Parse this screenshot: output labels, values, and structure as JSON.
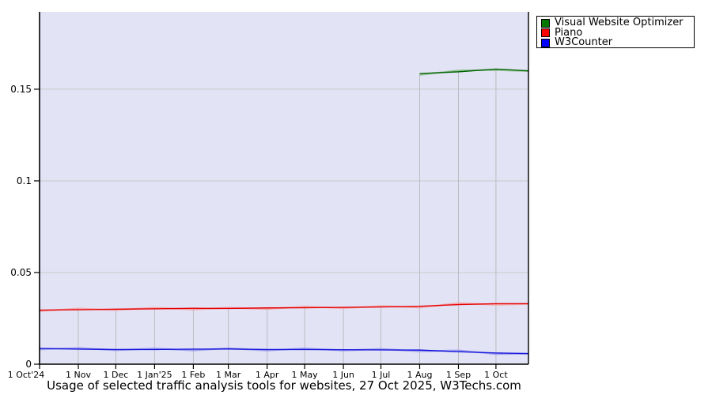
{
  "page": {
    "background": "#ffffff"
  },
  "chart_data": {
    "type": "line",
    "title": "Usage of selected traffic analysis tools for websites, 27 Oct 2025, W3Techs.com",
    "xlabel": "",
    "ylabel": "",
    "x_ticks": [
      "1 Oct'24",
      "1 Nov",
      "1 Dec",
      "1 Jan'25",
      "1 Feb",
      "1 Mar",
      "1 Apr",
      "1 May",
      "1 Jun",
      "1 Jul",
      "1 Aug",
      "1 Sep",
      "1 Oct"
    ],
    "x_end": "27 Oct 2025",
    "y_ticks": [
      "0",
      "0.05",
      "0.1",
      "0.15"
    ],
    "y_tick_values": [
      0,
      0.05,
      0.1,
      0.15
    ],
    "ylim": [
      0,
      0.1922
    ],
    "grid": "on",
    "legend_position": "top-right",
    "plot_background": "#e3e3f6",
    "hgrid_color": "#c8c8c8",
    "vgrid_color": "#bcbcc0",
    "axis_color": "#000000",
    "series": [
      {
        "name": "Visual Website Optimizer",
        "color": "#006400",
        "halo_color": "#8cbc8c",
        "swatch_color": "#007800",
        "values": [
          null,
          null,
          null,
          null,
          null,
          null,
          null,
          null,
          null,
          null,
          0.1585,
          0.1595,
          0.161
        ],
        "end_value": 0.16
      },
      {
        "name": "Piano",
        "color": "#e60000",
        "halo_color": "#f2a0a0",
        "swatch_color": "#ff0000",
        "values": [
          0.0295,
          0.0297,
          0.03,
          0.0302,
          0.0305,
          0.0304,
          0.0307,
          0.0308,
          0.031,
          0.0312,
          0.0316,
          0.0325,
          0.033
        ],
        "end_value": 0.033
      },
      {
        "name": "W3Counter",
        "color": "#1414dc",
        "halo_color": "#9898ec",
        "swatch_color": "#0000ff",
        "values": [
          0.0086,
          0.0082,
          0.008,
          0.008,
          0.0082,
          0.0083,
          0.008,
          0.008,
          0.0079,
          0.0078,
          0.0077,
          0.0068,
          0.0061
        ],
        "end_value": 0.0058
      }
    ]
  }
}
